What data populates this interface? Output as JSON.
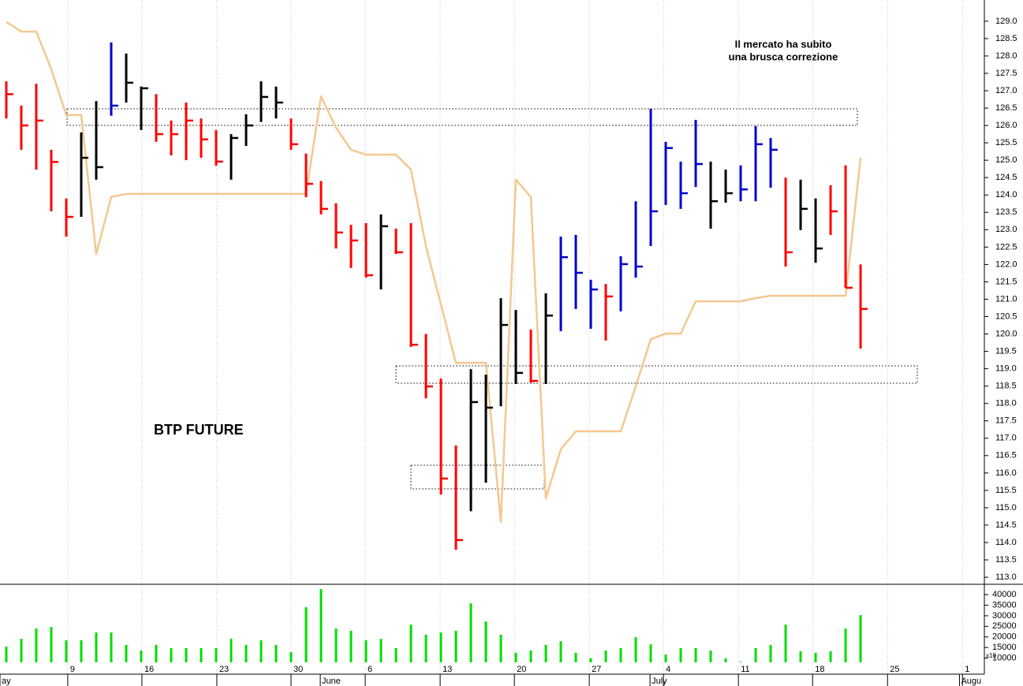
{
  "chart_data": {
    "type": "ohlc",
    "title": "BTP FUTURE",
    "annotation": [
      "Il mercato ha subito",
      "una brusca correzione"
    ],
    "annotation_color": "#ff0000",
    "x": [
      0,
      1,
      2,
      3,
      4,
      5,
      6,
      7,
      8,
      9,
      10,
      11,
      12,
      13,
      14,
      15,
      16,
      17,
      18,
      19,
      20,
      21,
      22,
      23,
      24,
      25,
      26,
      27,
      28,
      29,
      30,
      31,
      32,
      33,
      34,
      35,
      36,
      37,
      38,
      39,
      40,
      41,
      42,
      43,
      44,
      45,
      46,
      47,
      48,
      49,
      50,
      51,
      52,
      53,
      54,
      55,
      56,
      57
    ],
    "xlim": [
      -0.42,
      65.26
    ],
    "xticks": [
      {
        "value": 4.1,
        "label": "9"
      },
      {
        "value": 9.05,
        "label": "16"
      },
      {
        "value": 14.05,
        "label": "23"
      },
      {
        "value": 19,
        "label": "30"
      },
      {
        "value": 23.95,
        "label": "6"
      },
      {
        "value": 28.95,
        "label": "13"
      },
      {
        "value": 33.9,
        "label": "20"
      },
      {
        "value": 38.9,
        "label": "27"
      },
      {
        "value": 43.85,
        "label": "4"
      },
      {
        "value": 48.85,
        "label": "11"
      },
      {
        "value": 53.8,
        "label": "18"
      },
      {
        "value": 58.8,
        "label": "25"
      },
      {
        "value": 63.8,
        "label": "1"
      }
    ],
    "month_labels": [
      {
        "value": -0.42,
        "label": "ay"
      },
      {
        "value": 20.95,
        "label": "June"
      },
      {
        "value": 42.95,
        "label": "July"
      },
      {
        "value": 63.6,
        "label": "Augu"
      }
    ],
    "grid": true,
    "ylim": [
      112.82,
      129.61
    ],
    "yticks": [
      {
        "value": 113,
        "label": "113.0"
      },
      {
        "value": 113.5,
        "label": "113.5"
      },
      {
        "value": 114,
        "label": "114.0"
      },
      {
        "value": 114.5,
        "label": "114.5"
      },
      {
        "value": 115,
        "label": "115.0"
      },
      {
        "value": 115.5,
        "label": "115.5"
      },
      {
        "value": 116,
        "label": "116.0"
      },
      {
        "value": 116.5,
        "label": "116.5"
      },
      {
        "value": 117,
        "label": "117.0"
      },
      {
        "value": 117.5,
        "label": "117.5"
      },
      {
        "value": 118,
        "label": "118.0"
      },
      {
        "value": 118.5,
        "label": "118.5"
      },
      {
        "value": 119,
        "label": "119.0"
      },
      {
        "value": 119.5,
        "label": "119.5"
      },
      {
        "value": 120,
        "label": "120.0"
      },
      {
        "value": 120.5,
        "label": "120.5"
      },
      {
        "value": 121,
        "label": "121.0"
      },
      {
        "value": 121.5,
        "label": "121.5"
      },
      {
        "value": 122,
        "label": "122.0"
      },
      {
        "value": 122.5,
        "label": "122.5"
      },
      {
        "value": 123,
        "label": "123.0"
      },
      {
        "value": 123.5,
        "label": "123.5"
      },
      {
        "value": 124,
        "label": "124.0"
      },
      {
        "value": 124.5,
        "label": "124.5"
      },
      {
        "value": 125,
        "label": "125.0"
      },
      {
        "value": 125.5,
        "label": "125.5"
      },
      {
        "value": 126,
        "label": "126.0"
      },
      {
        "value": 126.5,
        "label": "126.5"
      },
      {
        "value": 127,
        "label": "127.0"
      },
      {
        "value": 127.5,
        "label": "127.5"
      },
      {
        "value": 128,
        "label": "128.0"
      },
      {
        "value": 128.5,
        "label": "128.5"
      },
      {
        "value": 129,
        "label": "129.0"
      }
    ],
    "high": [
      127.27,
      126.57,
      127.2,
      125.3,
      123.9,
      125.8,
      126.7,
      128.39,
      128.07,
      127.12,
      126.9,
      126.14,
      126.66,
      126.2,
      125.87,
      125.75,
      126.32,
      127.27,
      127.12,
      126.2,
      125.19,
      124.4,
      123.76,
      123.14,
      123.19,
      123.44,
      123.03,
      123.19,
      120.0,
      118.72,
      116.79,
      118.99,
      118.83,
      121.03,
      120.69,
      120.13,
      121.17,
      122.8,
      122.85,
      121.56,
      121.44,
      122.24,
      123.82,
      126.48,
      125.53,
      124.96,
      126.16,
      124.96,
      124.73,
      124.85,
      125.98,
      125.64,
      124.5,
      124.44,
      123.9,
      124.28,
      124.85,
      122.0
    ],
    "low": [
      126.2,
      125.3,
      124.73,
      123.53,
      122.8,
      123.37,
      124.44,
      126.28,
      126.66,
      125.87,
      125.53,
      125.14,
      125.0,
      125.07,
      124.84,
      124.44,
      125.41,
      126.1,
      126.2,
      125.3,
      123.94,
      123.44,
      122.46,
      121.9,
      121.62,
      121.28,
      122.3,
      119.63,
      118.15,
      115.38,
      113.79,
      114.9,
      115.72,
      117.92,
      118.56,
      118.6,
      118.56,
      120.08,
      120.72,
      120.15,
      119.81,
      120.65,
      121.62,
      122.53,
      123.71,
      123.6,
      124.23,
      123.03,
      123.78,
      123.82,
      123.82,
      124.21,
      121.94,
      122.99,
      122.05,
      122.85,
      121.33,
      119.58
    ],
    "close": [
      126.9,
      126.0,
      126.14,
      124.95,
      123.37,
      125.07,
      124.8,
      126.57,
      127.23,
      127.07,
      125.75,
      125.75,
      126.14,
      125.6,
      124.96,
      125.64,
      126.0,
      126.82,
      126.66,
      125.46,
      124.32,
      123.6,
      122.92,
      122.69,
      121.69,
      123.1,
      122.35,
      119.69,
      118.49,
      115.84,
      114.07,
      118.04,
      117.88,
      120.26,
      118.88,
      118.65,
      120.53,
      122.21,
      121.76,
      121.28,
      121.08,
      122.01,
      121.94,
      123.53,
      125.35,
      124.05,
      124.89,
      123.82,
      124.05,
      124.16,
      125.46,
      125.3,
      122.35,
      123.6,
      122.46,
      123.53,
      121.33,
      120.72
    ],
    "colors": [
      "#ff0000",
      "#ff0000",
      "#ff0000",
      "#ff0000",
      "#ff0000",
      "#000000",
      "#000000",
      "#0000cc",
      "#000000",
      "#000000",
      "#ff0000",
      "#ff0000",
      "#ff0000",
      "#ff0000",
      "#ff0000",
      "#000000",
      "#000000",
      "#000000",
      "#000000",
      "#ff0000",
      "#ff0000",
      "#ff0000",
      "#ff0000",
      "#ff0000",
      "#ff0000",
      "#000000",
      "#ff0000",
      "#ff0000",
      "#ff0000",
      "#ff0000",
      "#ff0000",
      "#000000",
      "#000000",
      "#000000",
      "#000000",
      "#ff0000",
      "#000000",
      "#0000cc",
      "#0000cc",
      "#0000cc",
      "#ff0000",
      "#0000cc",
      "#0000cc",
      "#0000cc",
      "#0000cc",
      "#0000cc",
      "#0000cc",
      "#000000",
      "#000000",
      "#0000cc",
      "#0000cc",
      "#0000cc",
      "#ff0000",
      "#000000",
      "#000000",
      "#ff0000",
      "#ff0000",
      "#ff0000"
    ],
    "line": {
      "color": "#f5c78e",
      "values": [
        128.98,
        128.7,
        128.7,
        127.62,
        126.3,
        126.3,
        122.3,
        123.94,
        124.03,
        124.03,
        124.03,
        124.03,
        124.03,
        124.03,
        124.03,
        124.03,
        124.03,
        124.03,
        124.03,
        124.03,
        124.03,
        126.84,
        125.94,
        125.3,
        125.16,
        125.16,
        125.16,
        124.73,
        122.53,
        120.85,
        119.17,
        119.17,
        119.17,
        114.59,
        124.44,
        123.94,
        115.27,
        116.68,
        117.2,
        117.2,
        117.2,
        117.2,
        118.49,
        119.85,
        120.01,
        120.01,
        120.94,
        120.94,
        120.94,
        120.94,
        121.03,
        121.1,
        121.1,
        121.1,
        121.1,
        121.1,
        121.1,
        125.07
      ]
    },
    "volume": {
      "color": "#00dd00",
      "note": "x10",
      "values": [
        15400,
        19100,
        24000,
        24700,
        18400,
        18400,
        22100,
        22100,
        16200,
        13600,
        16200,
        14700,
        14700,
        14700,
        14700,
        19100,
        16200,
        18400,
        16200,
        12800,
        34000,
        42600,
        24000,
        22900,
        18400,
        19100,
        14700,
        25800,
        21000,
        22100,
        22900,
        35900,
        27300,
        21000,
        12500,
        13600,
        16200,
        18000,
        12500,
        9900,
        13600,
        14700,
        19900,
        16500,
        11700,
        14700,
        14700,
        13600,
        9900,
        8300,
        14700,
        16200,
        25800,
        13200,
        12500,
        13200,
        24000,
        30300
      ],
      "ylim": [
        8000,
        43000
      ],
      "yticks": [
        10000,
        15000,
        20000,
        25000,
        30000,
        35000,
        40000
      ]
    }
  }
}
